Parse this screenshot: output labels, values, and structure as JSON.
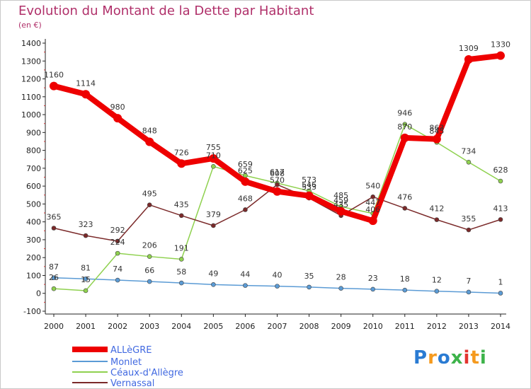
{
  "title": "Evolution du Montant de la Dette par Habitant",
  "unit": "(en €)",
  "logo": {
    "letters": [
      "P",
      "r",
      "o",
      "x",
      "i",
      "t",
      "i"
    ],
    "colors": [
      "#2a7bd3",
      "#f59a1e",
      "#2a7bd3",
      "#3db34a",
      "#e3342f",
      "#f59a1e",
      "#3db34a"
    ]
  },
  "chart_data": {
    "type": "line",
    "title": "Evolution du Montant de la Dette par Habitant",
    "ylabel": "(en €)",
    "x": [
      "2000",
      "2001",
      "2002",
      "2003",
      "2004",
      "2005",
      "2006",
      "2007",
      "2008",
      "2009",
      "2010",
      "2011",
      "2012",
      "2013",
      "2014"
    ],
    "ylim": [
      -100,
      1400
    ],
    "yticks": [
      -100,
      0,
      100,
      200,
      300,
      400,
      500,
      600,
      700,
      800,
      900,
      1000,
      1100,
      1200,
      1300,
      1400
    ],
    "grid": false,
    "legend_position": "bottom-left",
    "series": [
      {
        "name": "ALLèGRE",
        "color": "#ee0000",
        "values": [
          1160,
          1114,
          980,
          848,
          726,
          755,
          625,
          570,
          546,
          459,
          406,
          870,
          863,
          1309,
          1330
        ]
      },
      {
        "name": "Monlet",
        "color": "#5b9bd5",
        "values": [
          87,
          81,
          74,
          66,
          58,
          49,
          44,
          40,
          35,
          28,
          23,
          18,
          12,
          7,
          1
        ]
      },
      {
        "name": "Céaux-d'Allègre",
        "color": "#8fd14f",
        "values": [
          26,
          15,
          224,
          206,
          191,
          710,
          659,
          617,
          573,
          485,
          447,
          946,
          845,
          734,
          628
        ]
      },
      {
        "name": "Vernassal",
        "color": "#7b2a2a",
        "values": [
          365,
          323,
          292,
          495,
          435,
          379,
          468,
          608,
          533,
          435,
          540,
          476,
          412,
          355,
          413
        ]
      }
    ]
  }
}
